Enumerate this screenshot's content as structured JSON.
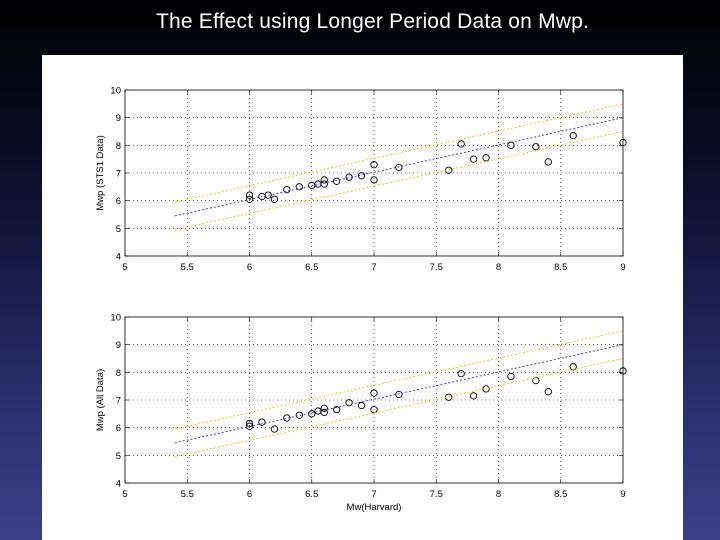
{
  "slide": {
    "title": "The Effect using Longer Period Data on Mwp."
  },
  "colors": {
    "background_top": "#000000",
    "background_bottom": "#3a4088",
    "fit_line": "#2a2acc",
    "bounds_line": "#d8c800",
    "markers": "#000000",
    "grid": "#000000"
  },
  "chart_data": [
    {
      "type": "scatter",
      "title": "",
      "xlabel": "",
      "ylabel": "Mwp (STS1 Data)",
      "xlim": [
        5,
        9
      ],
      "ylim": [
        4,
        10
      ],
      "x_ticks": [
        "5",
        "5.5",
        "6",
        "6.5",
        "7",
        "7.5",
        "8",
        "8.5",
        "9"
      ],
      "y_ticks": [
        "4",
        "5",
        "6",
        "7",
        "8",
        "9",
        "10"
      ],
      "grid": "dotted",
      "series": [
        {
          "marker": "circle",
          "points": [
            [
              6.0,
              6.2
            ],
            [
              6.0,
              6.05
            ],
            [
              6.1,
              6.15
            ],
            [
              6.15,
              6.2
            ],
            [
              6.2,
              6.05
            ],
            [
              6.3,
              6.4
            ],
            [
              6.4,
              6.5
            ],
            [
              6.5,
              6.55
            ],
            [
              6.55,
              6.6
            ],
            [
              6.6,
              6.75
            ],
            [
              6.6,
              6.6
            ],
            [
              6.7,
              6.7
            ],
            [
              6.8,
              6.85
            ],
            [
              6.9,
              6.9
            ],
            [
              7.0,
              7.3
            ],
            [
              7.0,
              6.75
            ],
            [
              7.2,
              7.2
            ],
            [
              7.6,
              7.1
            ],
            [
              7.7,
              8.05
            ],
            [
              7.8,
              7.5
            ],
            [
              7.9,
              7.55
            ],
            [
              8.1,
              8.0
            ],
            [
              8.3,
              7.95
            ],
            [
              8.4,
              7.4
            ],
            [
              8.6,
              8.35
            ],
            [
              9.0,
              8.1
            ]
          ]
        },
        {
          "style": "fit-line",
          "points": [
            [
              5.4,
              5.45
            ],
            [
              9.0,
              9.0
            ]
          ]
        },
        {
          "style": "upper-bound",
          "points": [
            [
              5.4,
              5.95
            ],
            [
              9.0,
              9.5
            ]
          ]
        },
        {
          "style": "lower-bound",
          "points": [
            [
              5.4,
              4.95
            ],
            [
              9.0,
              8.5
            ]
          ]
        }
      ]
    },
    {
      "type": "scatter",
      "title": "",
      "xlabel": "Mw(Harvard)",
      "ylabel": "Mwp (All Data)",
      "xlim": [
        5,
        9
      ],
      "ylim": [
        4,
        10
      ],
      "x_ticks": [
        "5",
        "5.5",
        "6",
        "6.5",
        "7",
        "7.5",
        "8",
        "8.5",
        "9"
      ],
      "y_ticks": [
        "4",
        "5",
        "6",
        "7",
        "8",
        "9",
        "10"
      ],
      "grid": "dotted",
      "series": [
        {
          "marker": "circle",
          "points": [
            [
              6.0,
              6.15
            ],
            [
              6.0,
              6.05
            ],
            [
              6.1,
              6.2
            ],
            [
              6.2,
              5.95
            ],
            [
              6.3,
              6.35
            ],
            [
              6.4,
              6.45
            ],
            [
              6.5,
              6.5
            ],
            [
              6.55,
              6.6
            ],
            [
              6.6,
              6.7
            ],
            [
              6.6,
              6.55
            ],
            [
              6.7,
              6.65
            ],
            [
              6.8,
              6.9
            ],
            [
              6.9,
              6.8
            ],
            [
              7.0,
              7.25
            ],
            [
              7.0,
              6.65
            ],
            [
              7.2,
              7.2
            ],
            [
              7.6,
              7.1
            ],
            [
              7.7,
              7.95
            ],
            [
              7.8,
              7.15
            ],
            [
              7.9,
              7.4
            ],
            [
              8.1,
              7.85
            ],
            [
              8.3,
              7.7
            ],
            [
              8.4,
              7.3
            ],
            [
              8.6,
              8.2
            ],
            [
              9.0,
              8.05
            ]
          ]
        },
        {
          "style": "fit-line",
          "points": [
            [
              5.4,
              5.45
            ],
            [
              9.0,
              9.0
            ]
          ]
        },
        {
          "style": "upper-bound",
          "points": [
            [
              5.4,
              5.95
            ],
            [
              9.0,
              9.5
            ]
          ]
        },
        {
          "style": "lower-bound",
          "points": [
            [
              5.4,
              4.95
            ],
            [
              9.0,
              8.5
            ]
          ]
        }
      ]
    }
  ]
}
